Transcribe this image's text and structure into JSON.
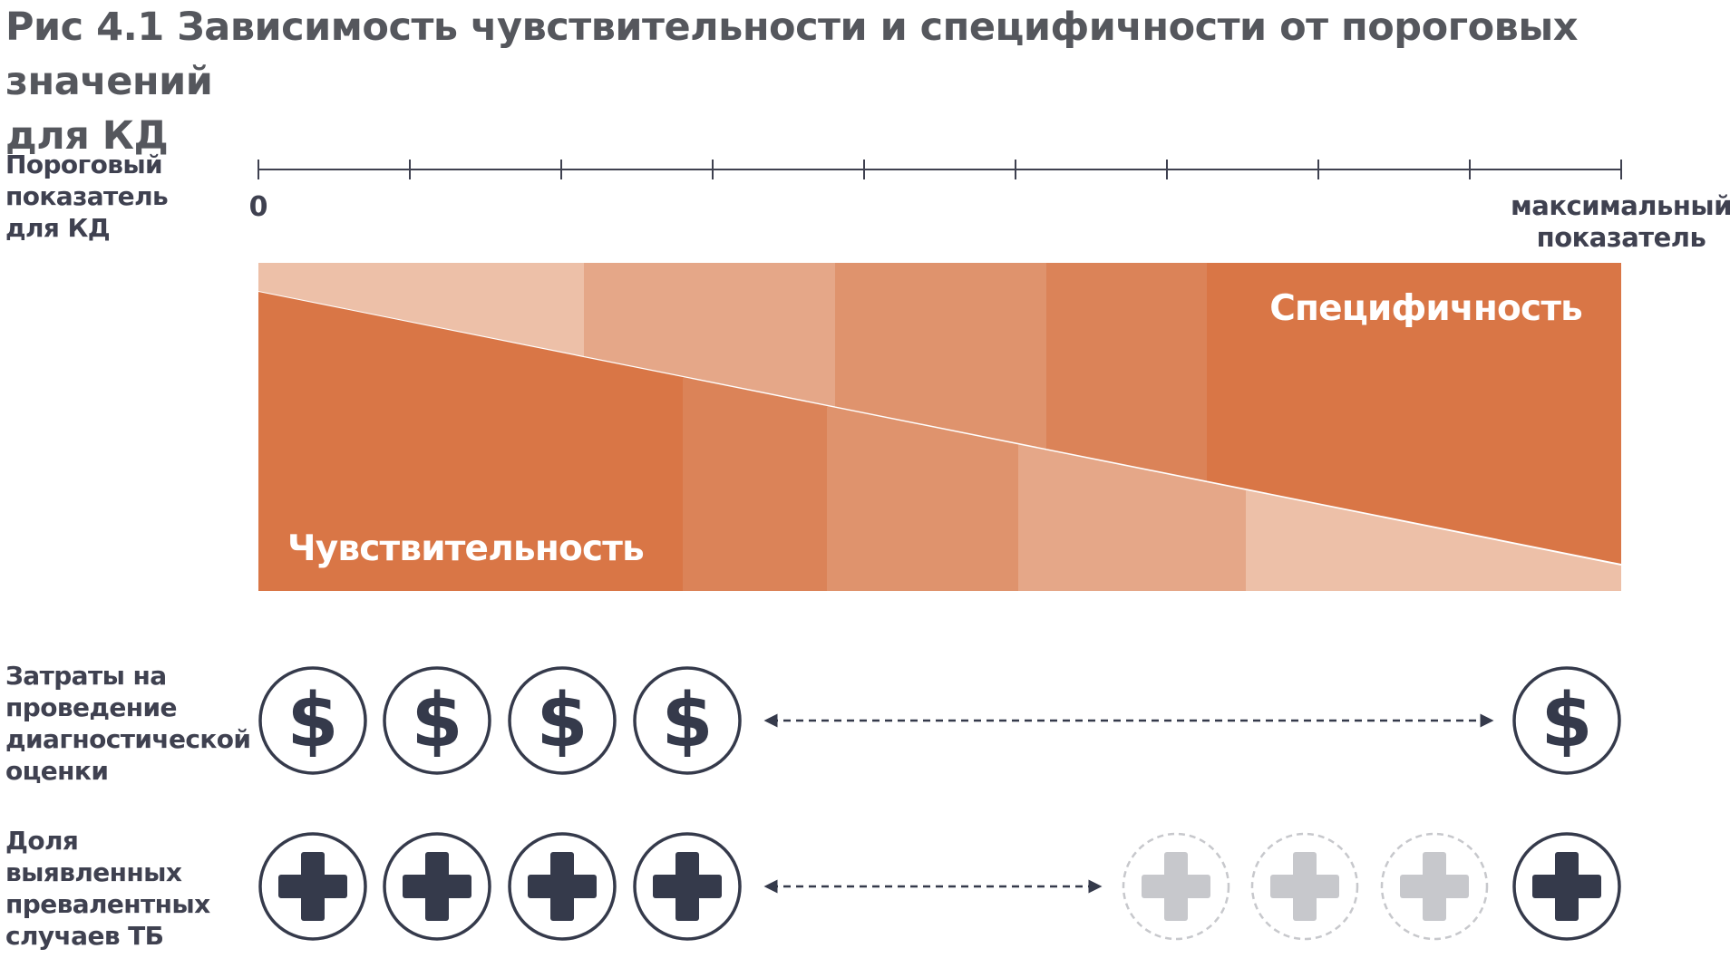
{
  "title_line1": "Рис 4.1 Зависимость чувствительности и специфичности от пороговых значений",
  "title_line2": "для КД",
  "threshold_label": [
    "Пороговый",
    "показатель",
    "для КД"
  ],
  "axis": {
    "start_label": "0",
    "end_label_line1": "максимальный",
    "end_label_line2": "показатель",
    "ticks": 10
  },
  "bands": {
    "specificity_label": "Специфичность",
    "sensitivity_label": "Чувствительность"
  },
  "costs_label": [
    "Затраты на",
    "проведение",
    "диагностической",
    "оценки"
  ],
  "tb_label": [
    "Доля",
    "выявленных",
    "превалентных",
    "случаев ТБ"
  ],
  "icons": {
    "cost": "dollar-icon",
    "case": "plus-icon",
    "case_faded": "plus-faded-icon"
  },
  "colors": {
    "orange_dark": "#d97646",
    "orange_2": "#db8358",
    "orange_3": "#df936d",
    "orange_4": "#e5a788",
    "orange_5": "#edc0a8",
    "icon_dark": "#353a4b",
    "icon_faded": "#c7c8cc",
    "title": "#55575d"
  }
}
